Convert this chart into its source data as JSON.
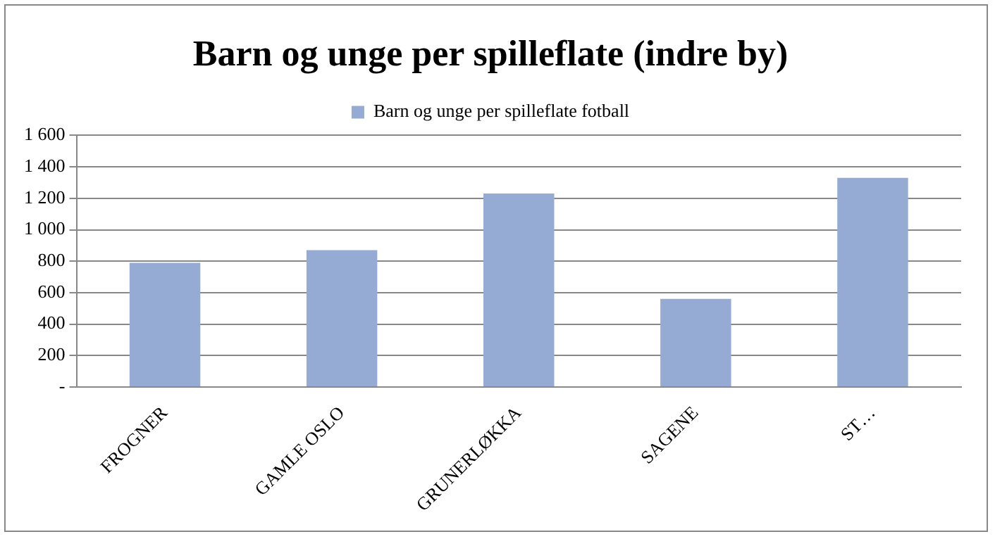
{
  "chart_data": {
    "type": "bar",
    "title": "Barn og unge per spilleflate (indre by)",
    "categories": [
      "FROGNER",
      "GAMLE OSLO",
      "GRUNERLØKKA",
      "SAGENE",
      "ST…"
    ],
    "series": [
      {
        "name": "Barn og unge per spilleflate fotball",
        "color": "#95abd3",
        "values": [
          790,
          870,
          1230,
          560,
          1330
        ]
      }
    ],
    "ylim": [
      0,
      1600
    ],
    "yticks": [
      {
        "value": 0,
        "label": "-"
      },
      {
        "value": 200,
        "label": "200"
      },
      {
        "value": 400,
        "label": "400"
      },
      {
        "value": 600,
        "label": "600"
      },
      {
        "value": 800,
        "label": "800"
      },
      {
        "value": 1000,
        "label": "1 000"
      },
      {
        "value": 1200,
        "label": "1 200"
      },
      {
        "value": 1400,
        "label": "1 400"
      },
      {
        "value": 1600,
        "label": "1 600"
      }
    ],
    "grid": "y",
    "legend": "top"
  }
}
